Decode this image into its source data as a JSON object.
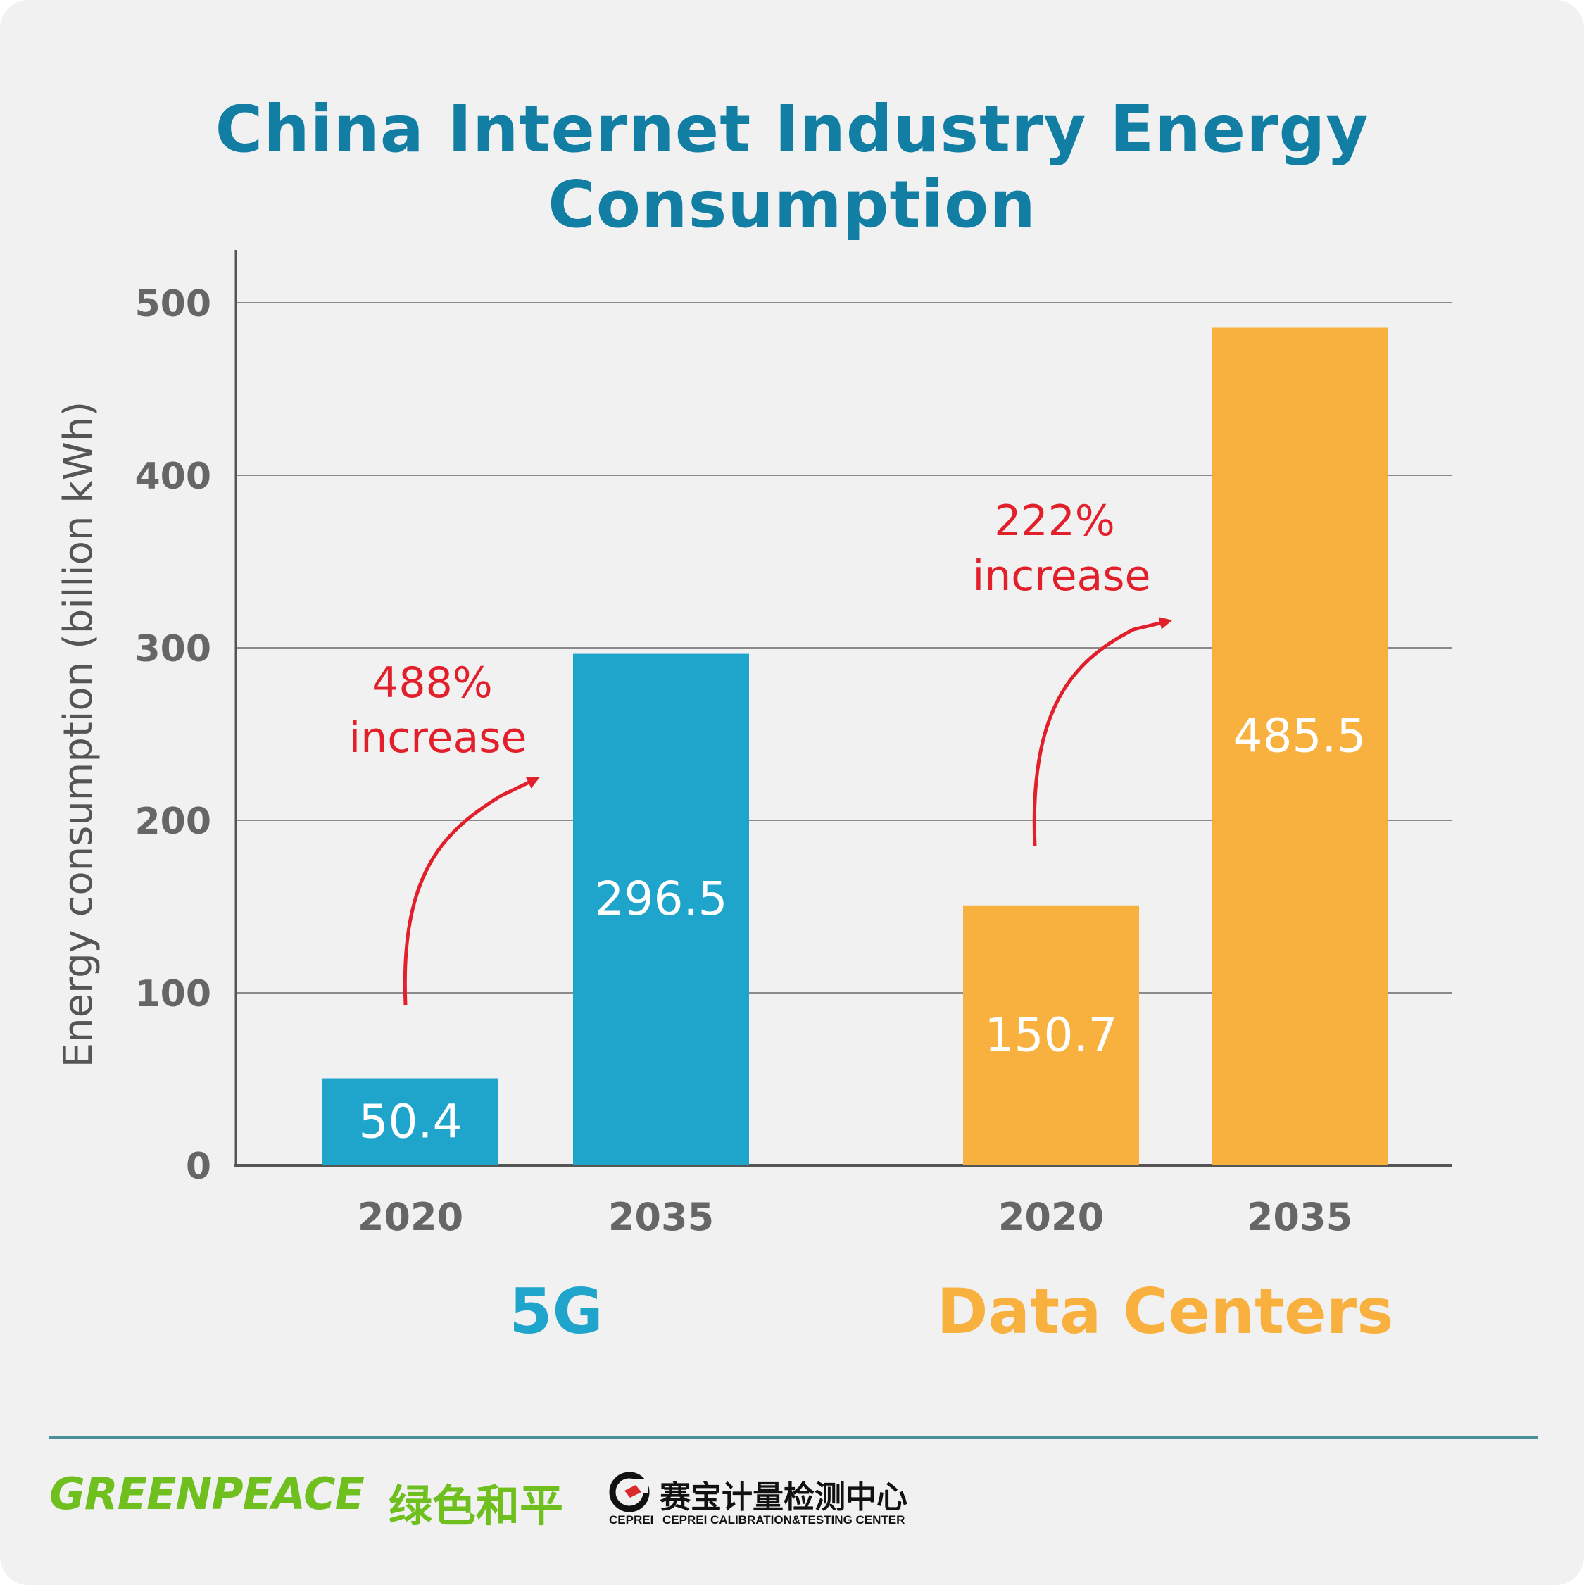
{
  "title": "China Internet Industry Energy Consumption",
  "colors": {
    "title": "#127ea3",
    "fiveG": "#1fa5cb",
    "dataCenters": "#f8b13f",
    "annotation": "#e2202b",
    "axisText": "#666666",
    "grid": "#8a8a8a",
    "divider": "#4a8f99",
    "greenpeace": "#6fbf1f",
    "cepreiRed": "#d92b2b"
  },
  "chart_data": {
    "type": "bar",
    "ylabel": "Energy consumption (billion kWh)",
    "xlabel": "",
    "ylim": [
      0,
      500
    ],
    "yticks": [
      "0",
      "100",
      "200",
      "300",
      "400",
      "500"
    ],
    "grid": true,
    "groups": [
      {
        "name": "5G",
        "color": "#1fa5cb",
        "bars": [
          {
            "x": "2020",
            "value": 50.4,
            "label": "50.4"
          },
          {
            "x": "2035",
            "value": 296.5,
            "label": "296.5"
          }
        ],
        "annotation": {
          "line1": "488%",
          "line2": "increase"
        }
      },
      {
        "name": "Data Centers",
        "color": "#f8b13f",
        "bars": [
          {
            "x": "2020",
            "value": 150.7,
            "label": "150.7"
          },
          {
            "x": "2035",
            "value": 485.5,
            "label": "485.5"
          }
        ],
        "annotation": {
          "line1": "222%",
          "line2": "increase"
        }
      }
    ]
  },
  "footer": {
    "greenpeace_logo": "GREENPEACE",
    "greenpeace_logo_cn": "绿色和平",
    "ceprei_logo_cn": "赛宝计量检测中心",
    "ceprei_logo_abbr": "CEPREI",
    "ceprei_logo_en": "CEPREI CALIBRATION&TESTING CENTER"
  }
}
